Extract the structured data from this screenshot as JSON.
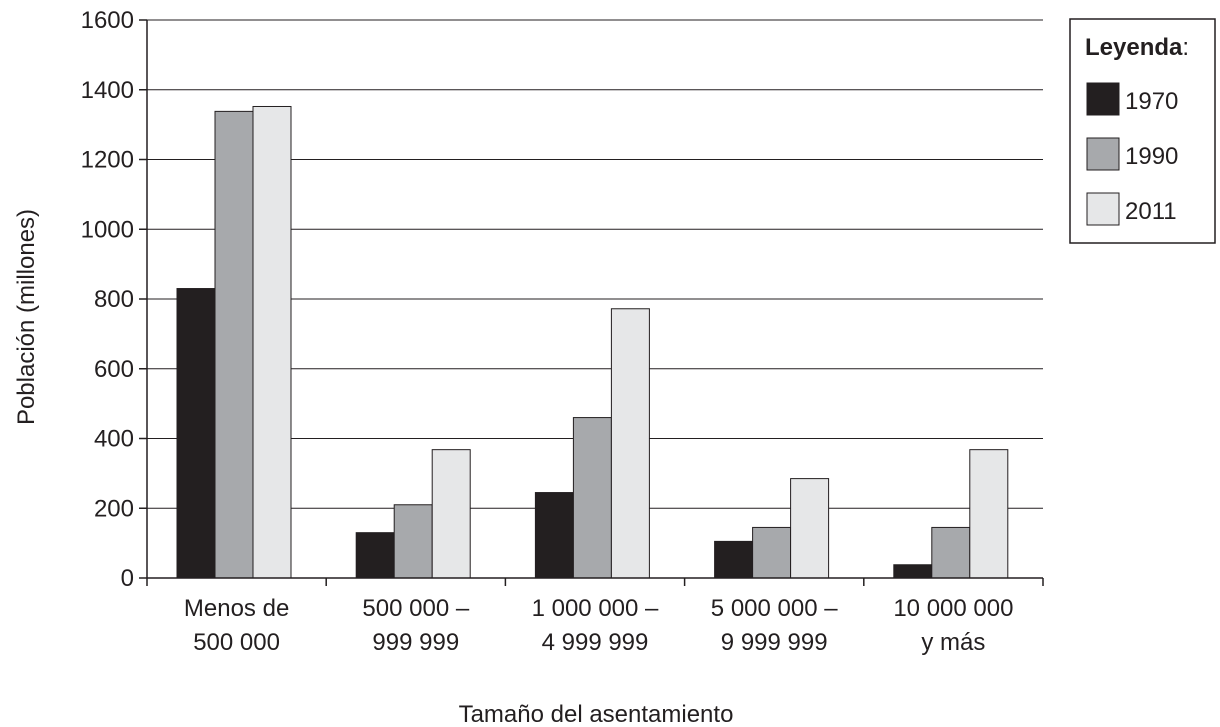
{
  "chart_data": {
    "type": "bar",
    "categories": [
      [
        "Menos de",
        "500 000"
      ],
      [
        "500 000 –",
        "999 999"
      ],
      [
        "1 000 000 –",
        "4 999 999"
      ],
      [
        "5 000 000 –",
        "9 999 999"
      ],
      [
        "10 000 000",
        "y más"
      ]
    ],
    "series": [
      {
        "name": "1970",
        "color": "#231f20",
        "values": [
          830,
          130,
          245,
          105,
          38
        ]
      },
      {
        "name": "1990",
        "color": "#a7a9ac",
        "values": [
          1338,
          210,
          460,
          145,
          145
        ]
      },
      {
        "name": "2011",
        "color": "#e6e7e8",
        "values": [
          1352,
          368,
          772,
          285,
          368
        ]
      }
    ],
    "ylabel": "Población (millones)",
    "xlabel": "Tamaño del asentamiento",
    "ylim": [
      0,
      1600
    ],
    "yticks": [
      0,
      200,
      400,
      600,
      800,
      1000,
      1200,
      1400,
      1600
    ],
    "grid": "horizontal",
    "legend": {
      "title": "Leyenda",
      "title_suffix": ":",
      "placement": "top-right"
    }
  }
}
